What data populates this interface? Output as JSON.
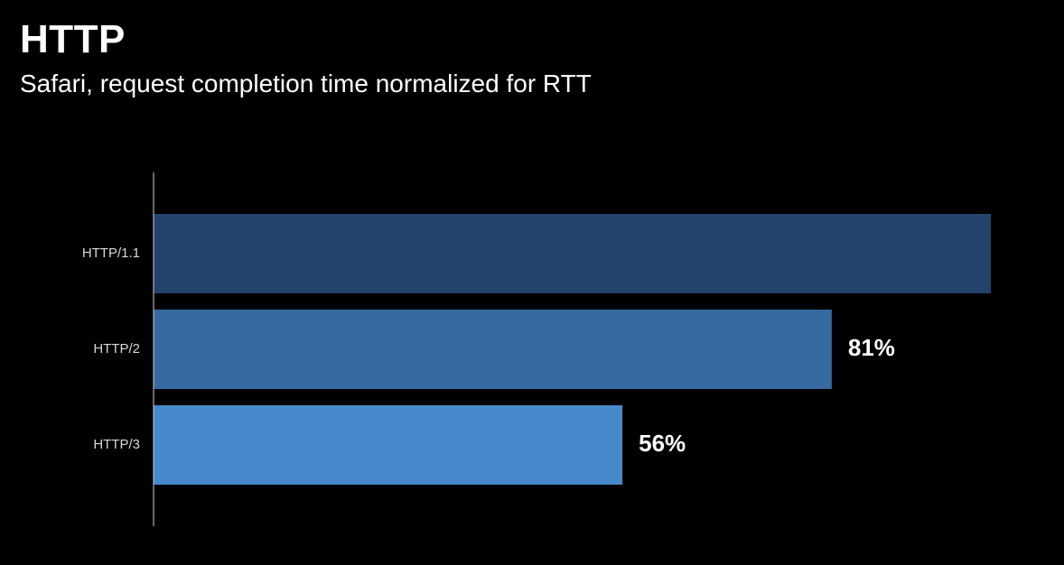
{
  "header": {
    "title": "HTTP",
    "subtitle": "Safari, request completion time normalized for RTT"
  },
  "chart_data": {
    "type": "bar",
    "orientation": "horizontal",
    "title": "HTTP",
    "subtitle": "Safari, request completion time normalized for RTT",
    "categories": [
      "HTTP/1.1",
      "HTTP/2",
      "HTTP/3"
    ],
    "values": [
      100,
      81,
      56
    ],
    "value_unit": "%",
    "data_labels": [
      "",
      "81%",
      "56%"
    ],
    "colors": [
      "#22436a",
      "#366aa0",
      "#4789cb"
    ],
    "xlim": [
      0,
      100
    ],
    "grid": false,
    "legend": "none",
    "axis_color": "#d0d0d0",
    "background": "#000000"
  }
}
